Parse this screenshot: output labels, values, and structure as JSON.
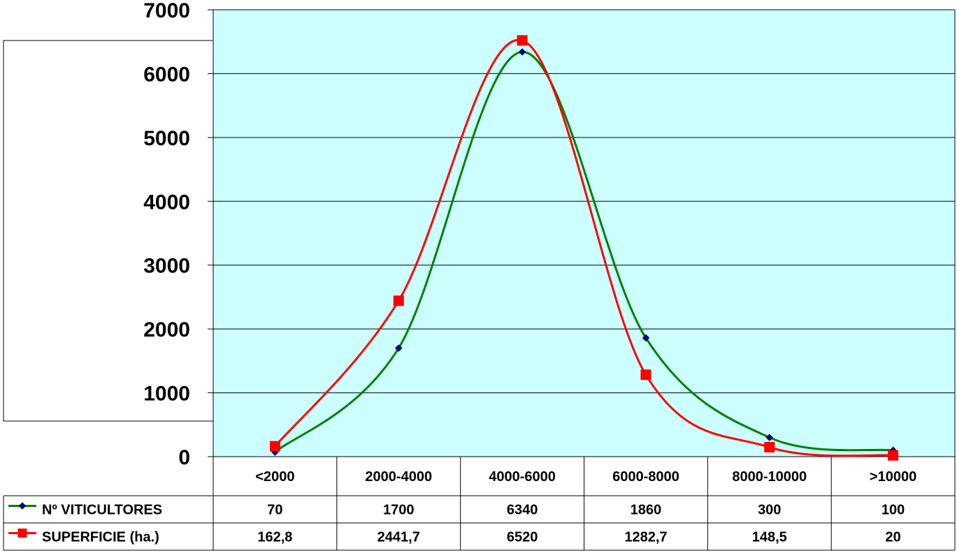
{
  "chart_data": {
    "type": "line",
    "categories": [
      "<2000",
      "2000-4000",
      "4000-6000",
      "6000-8000",
      "8000-10000",
      ">10000"
    ],
    "series": [
      {
        "name": "Nº VITICULTORES",
        "values": [
          70,
          1700,
          6340,
          1860,
          300,
          100
        ],
        "labels": [
          "70",
          "1700",
          "6340",
          "1860",
          "300",
          "100"
        ],
        "color": "#008000",
        "marker": "diamond",
        "marker_color": "#000080"
      },
      {
        "name": "SUPERFICIE (ha.)",
        "values": [
          162.8,
          2441.7,
          6520,
          1282.7,
          148.5,
          20
        ],
        "labels": [
          "162,8",
          "2441,7",
          "6520",
          "1282,7",
          "148,5",
          "20"
        ],
        "color": "#ff0000",
        "marker": "square",
        "marker_color": "#ff0000"
      }
    ],
    "ylim": [
      0,
      7000
    ],
    "yticks": [
      0,
      1000,
      2000,
      3000,
      4000,
      5000,
      6000,
      7000
    ],
    "grid": true,
    "smooth": true,
    "plot_background": "#ccffff",
    "data_table": true
  }
}
